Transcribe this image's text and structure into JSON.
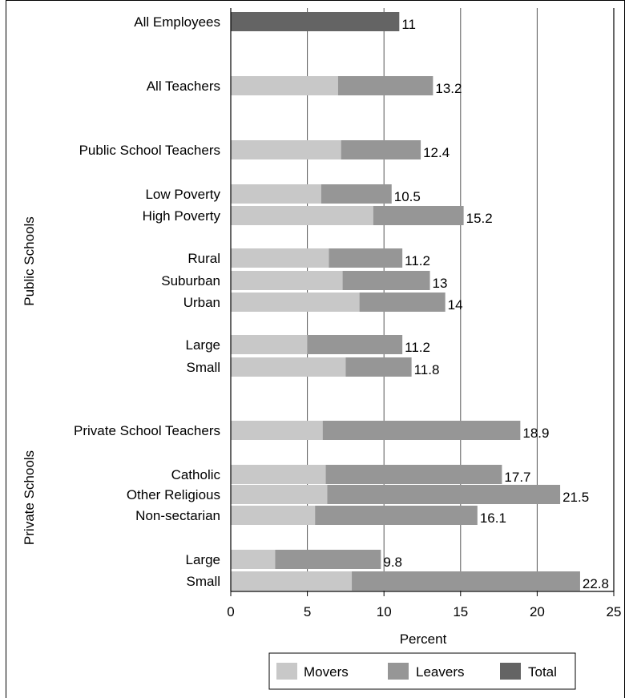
{
  "chart_data": {
    "type": "bar",
    "orientation": "horizontal",
    "stacked": true,
    "xlabel": "Percent",
    "xlim": [
      0,
      25
    ],
    "xticks": [
      "0",
      "5",
      "10",
      "15",
      "20",
      "25"
    ],
    "grid": true,
    "legend_position": "bottom",
    "legend": [
      "Movers",
      "Leavers",
      "Total"
    ],
    "colors": {
      "movers": "#c8c8c8",
      "leavers": "#969696",
      "total": "#646464"
    },
    "group_labels": {
      "public": "Public Schools",
      "private": "Private Schools"
    },
    "categories": [
      {
        "label": "All Employees",
        "total": 11,
        "total_label": "11"
      },
      {
        "label": "All Teachers",
        "movers": 7.0,
        "leavers": 6.2,
        "total_label": "13.2"
      },
      {
        "label": "Public School Teachers",
        "movers": 7.2,
        "leavers": 5.2,
        "total_label": "12.4"
      },
      {
        "label": "Low Poverty",
        "movers": 5.9,
        "leavers": 4.6,
        "total_label": "10.5"
      },
      {
        "label": "High Poverty",
        "movers": 9.3,
        "leavers": 5.9,
        "total_label": "15.2"
      },
      {
        "label": "Rural",
        "movers": 6.4,
        "leavers": 4.8,
        "total_label": "11.2"
      },
      {
        "label": "Suburban",
        "movers": 7.3,
        "leavers": 5.7,
        "total_label": "13"
      },
      {
        "label": "Urban",
        "movers": 8.4,
        "leavers": 5.6,
        "total_label": "14"
      },
      {
        "label": "Large",
        "movers": 5.0,
        "leavers": 6.2,
        "total_label": "11.2"
      },
      {
        "label": "Small",
        "movers": 7.5,
        "leavers": 4.3,
        "total_label": "11.8"
      },
      {
        "label": "Private School Teachers",
        "movers": 6.0,
        "leavers": 12.9,
        "total_label": "18.9"
      },
      {
        "label": "Catholic",
        "movers": 6.2,
        "leavers": 11.5,
        "total_label": "17.7"
      },
      {
        "label": "Other Religious",
        "movers": 6.3,
        "leavers": 15.2,
        "total_label": "21.5"
      },
      {
        "label": "Non-sectarian",
        "movers": 5.5,
        "leavers": 10.6,
        "total_label": "16.1"
      },
      {
        "label": "Large",
        "movers": 2.9,
        "leavers": 6.9,
        "total_label": "9.8"
      },
      {
        "label": "Small",
        "movers": 7.9,
        "leavers": 14.9,
        "total_label": "22.8"
      }
    ]
  }
}
